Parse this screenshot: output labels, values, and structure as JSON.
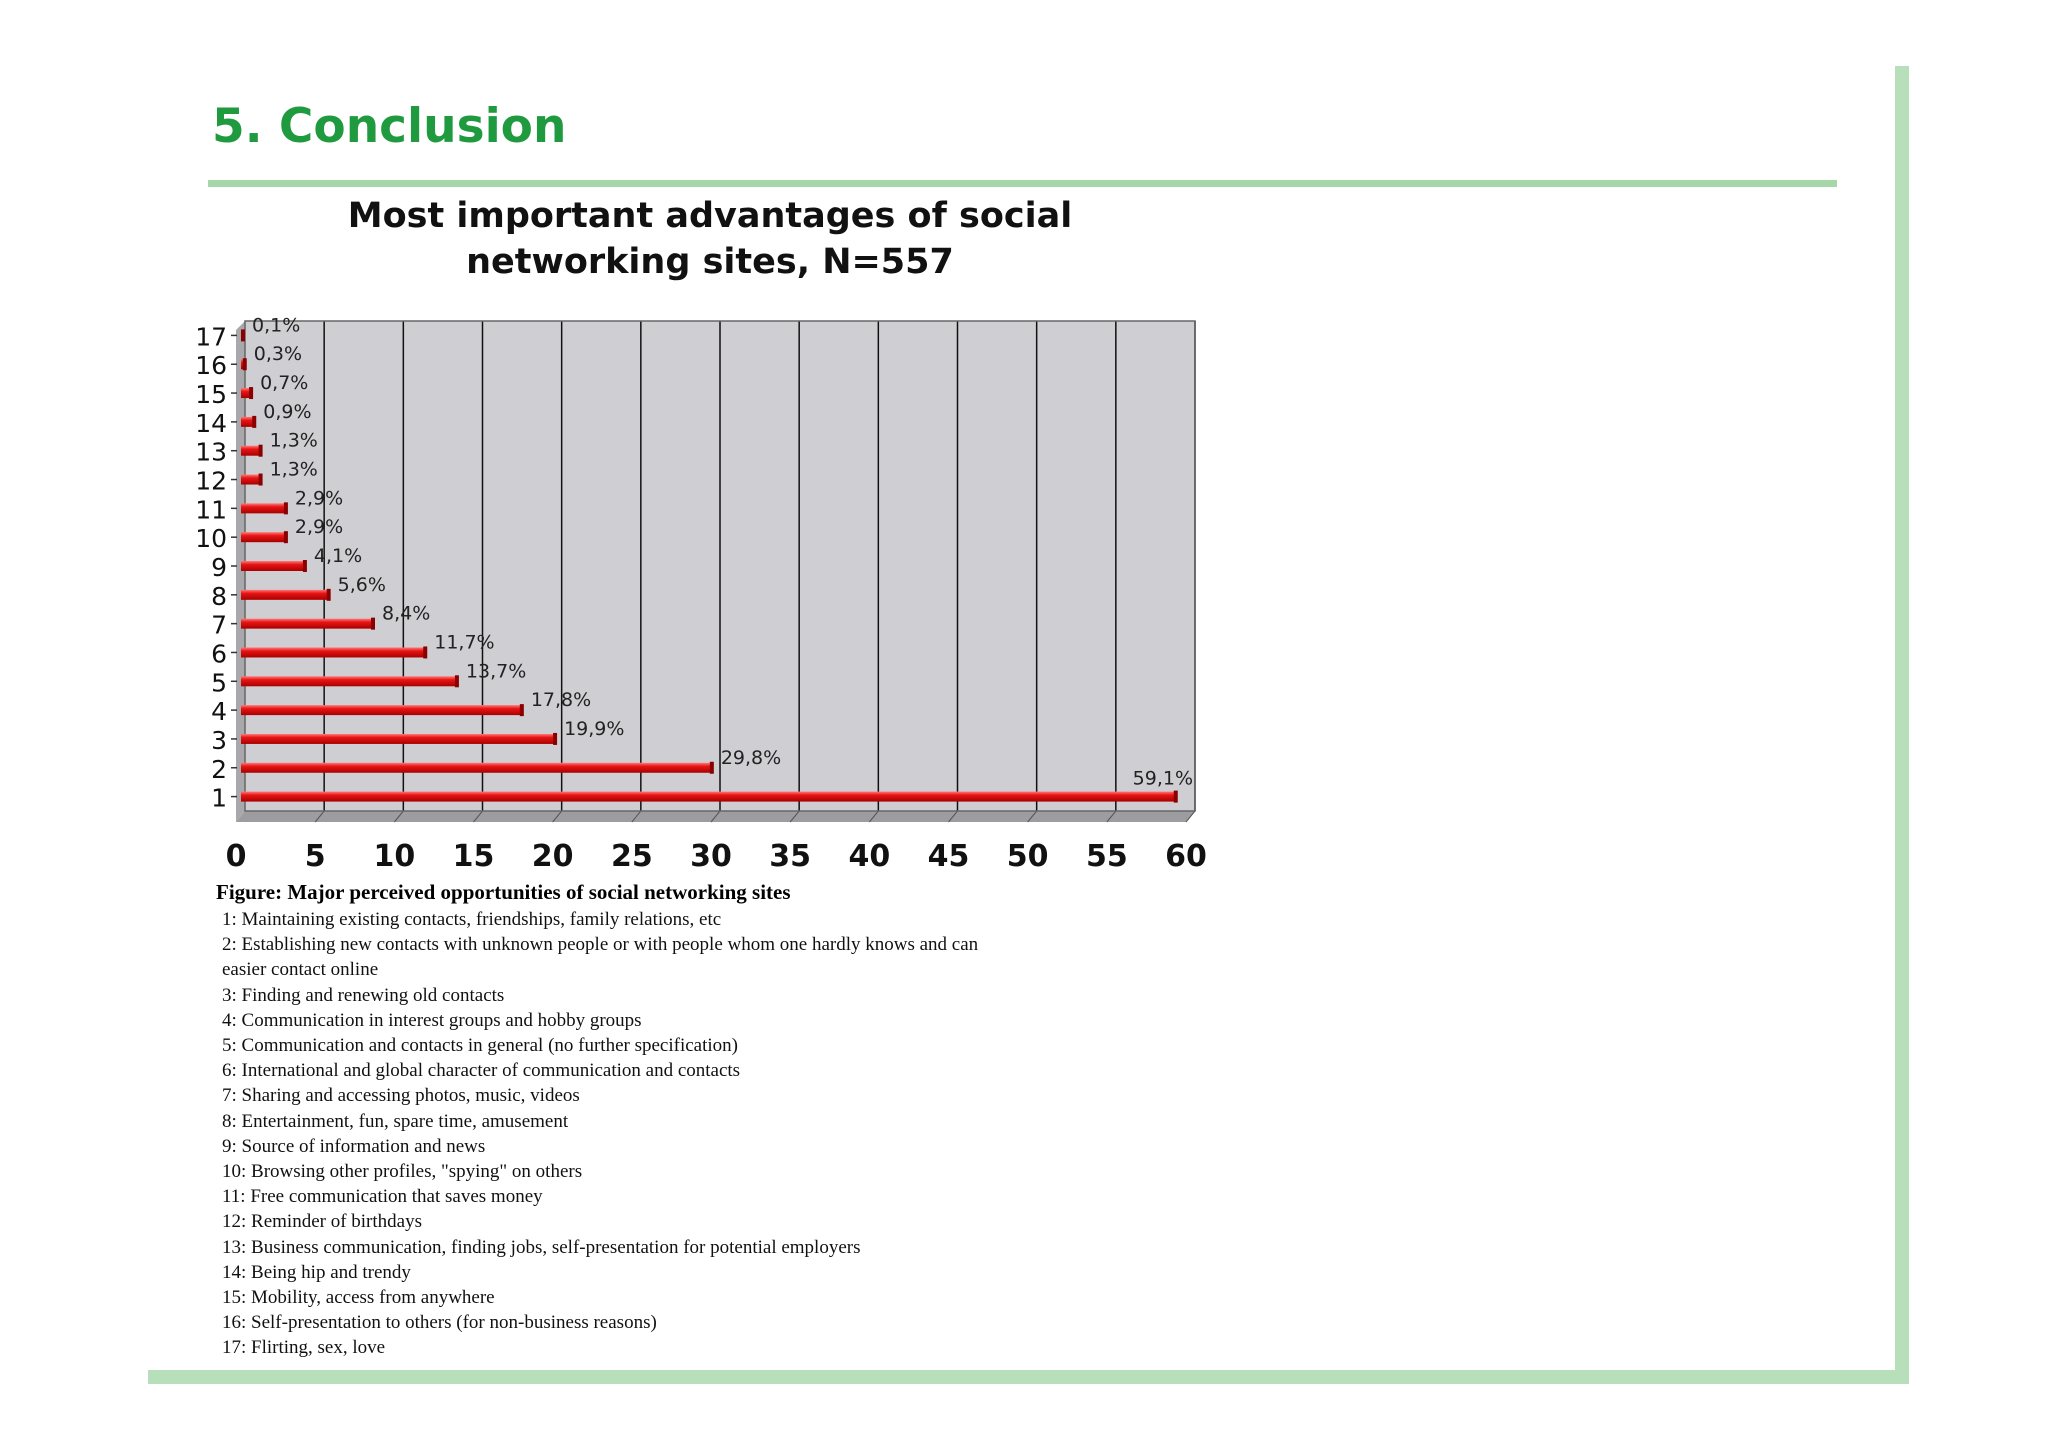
{
  "slide": {
    "title": "5. Conclusion"
  },
  "chart_data": {
    "type": "bar",
    "orientation": "horizontal",
    "title": "Most important advantages of social networking sites, N=557",
    "title_lines": [
      "Most important advantages of social",
      "networking sites, N=557"
    ],
    "categories": [
      "1",
      "2",
      "3",
      "4",
      "5",
      "6",
      "7",
      "8",
      "9",
      "10",
      "11",
      "12",
      "13",
      "14",
      "15",
      "16",
      "17"
    ],
    "values": [
      59.1,
      29.8,
      19.9,
      17.8,
      13.7,
      11.7,
      8.4,
      5.6,
      4.1,
      2.9,
      2.9,
      1.3,
      1.3,
      0.9,
      0.7,
      0.3,
      0.1
    ],
    "data_labels": [
      "59,1%",
      "29,8%",
      "19,9%",
      "17,8%",
      "13,7%",
      "11,7%",
      "8,4%",
      "5,6%",
      "4,1%",
      "2,9%",
      "2,9%",
      "1,3%",
      "1,3%",
      "0,9%",
      "0,7%",
      "0,3%",
      "0,1%"
    ],
    "xlim": [
      0,
      60
    ],
    "x_ticks": [
      0,
      5,
      10,
      15,
      20,
      25,
      30,
      35,
      40,
      45,
      50,
      55,
      60
    ],
    "xlabel": "",
    "ylabel": "",
    "grid": true,
    "colors": {
      "bar": "#e01010",
      "bar_dark": "#8a0000",
      "bar_light": "#ff6b6b",
      "plot_bg": "#cfcfd3",
      "wall": "#a9a9ad",
      "gridline": "#111111"
    }
  },
  "legend": {
    "title": "Figure: Major perceived opportunities of social networking sites",
    "items": [
      "1: Maintaining existing contacts, friendships, family relations, etc",
      "2: Establishing new contacts with unknown people or with people whom one hardly knows and can",
      "easier contact online",
      "3: Finding and renewing old contacts",
      "4: Communication in interest groups and hobby groups",
      "5: Communication and contacts in general (no further specification)",
      "6: International and global character of communication and contacts",
      "7: Sharing and accessing photos, music, videos",
      "8: Entertainment, fun, spare time, amusement",
      "9: Source of information and news",
      "10: Browsing other profiles, \"spying\" on others",
      "11: Free communication that saves money",
      "12: Reminder of birthdays",
      "13: Business communication, finding jobs, self-presentation for potential employers",
      "14: Being hip and trendy",
      "15: Mobility, access from anywhere",
      "16: Self-presentation to others (for non-business reasons)",
      "17: Flirting, sex, love"
    ]
  }
}
